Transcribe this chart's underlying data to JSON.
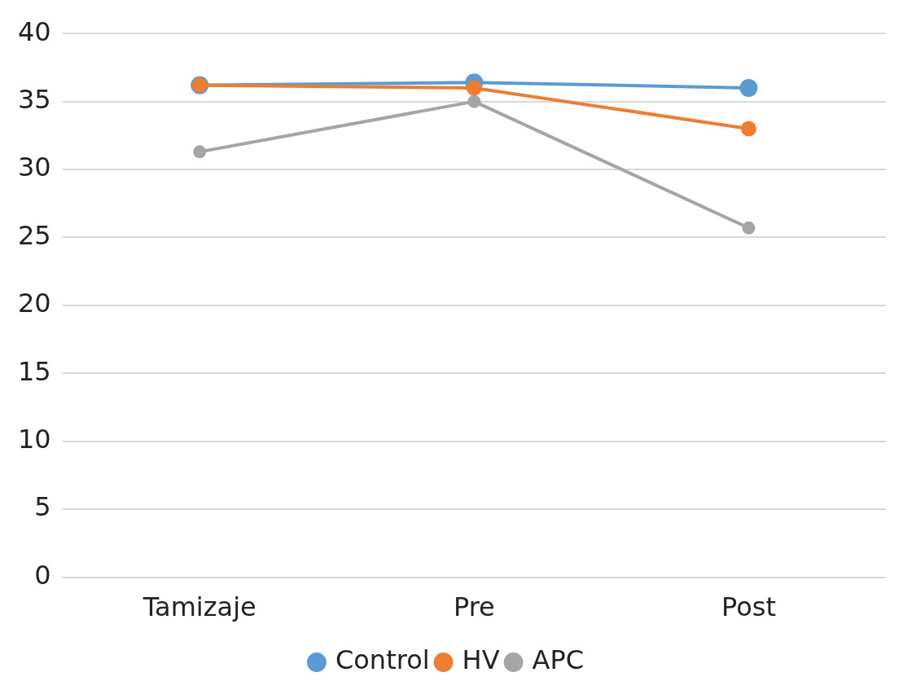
{
  "chart_data": {
    "type": "line",
    "categories": [
      "Tamizaje",
      "Pre",
      "Post"
    ],
    "series": [
      {
        "name": "Control",
        "color": "#5b9bd5",
        "values": [
          36.2,
          36.4,
          36.0
        ]
      },
      {
        "name": "HV",
        "color": "#ed7d31",
        "values": [
          36.2,
          36.0,
          33.0
        ]
      },
      {
        "name": "APC",
        "color": "#a5a5a5",
        "values": [
          31.3,
          35.0,
          25.7
        ]
      }
    ],
    "ylim": [
      0,
      40
    ],
    "yticks": [
      0,
      5,
      10,
      15,
      20,
      25,
      30,
      35,
      40
    ],
    "grid": "y",
    "legend": "bottom",
    "marker": "circle",
    "line_style": "solid"
  }
}
